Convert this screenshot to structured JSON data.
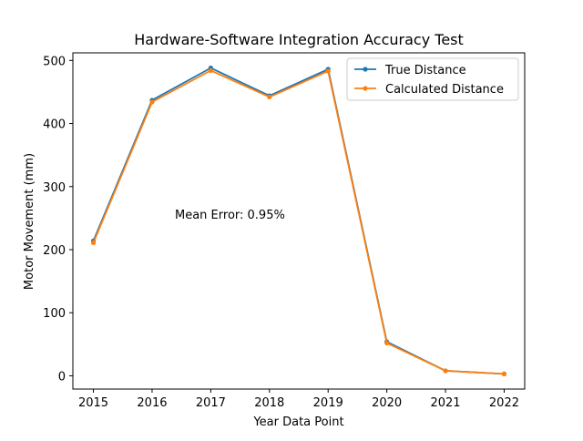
{
  "chart_data": {
    "type": "line",
    "title": "Hardware-Software Integration Accuracy Test",
    "xlabel": "Year Data Point",
    "ylabel": "Motor Movement (mm)",
    "x": [
      2015,
      2016,
      2017,
      2018,
      2019,
      2020,
      2021,
      2022
    ],
    "xlim": [
      2014.65,
      2022.35
    ],
    "ylim": [
      -21,
      512
    ],
    "xticks": [
      2015,
      2016,
      2017,
      2018,
      2019,
      2020,
      2021,
      2022
    ],
    "yticks": [
      0,
      100,
      200,
      300,
      400,
      500
    ],
    "grid": false,
    "legend_position": "top-right",
    "series": [
      {
        "name": "True Distance",
        "color": "#1f77b4",
        "values": [
          214,
          437,
          488,
          444,
          486,
          54,
          8,
          3
        ]
      },
      {
        "name": "Calculated Distance",
        "color": "#ff7f0e",
        "values": [
          211,
          434,
          484,
          442,
          483,
          52,
          8,
          3
        ]
      }
    ],
    "annotation": {
      "text": "Mean Error: 0.95%",
      "color": "#ff0000"
    }
  }
}
